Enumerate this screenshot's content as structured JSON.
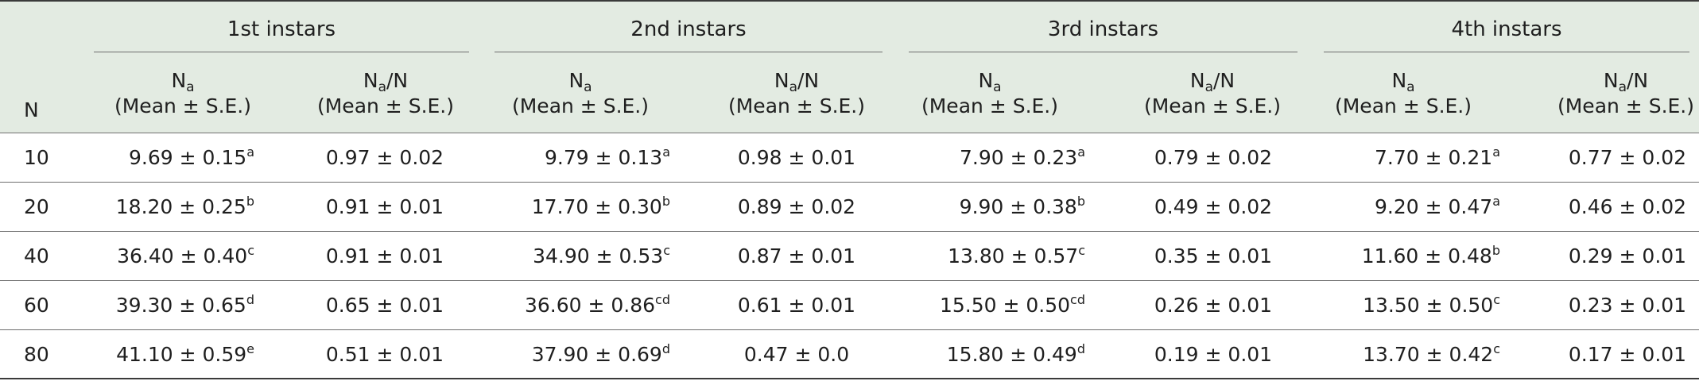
{
  "columns": {
    "n_header": "N",
    "groups": [
      "1st instars",
      "2nd instars",
      "3rd instars",
      "4th instars"
    ],
    "sub": {
      "mean_symbol": "N",
      "mean_subscript": "a",
      "ratio_symbol": "N",
      "ratio_subscript": "a",
      "ratio_suffix": "/N",
      "stat": "(Mean ± S.E.)"
    }
  },
  "rows": [
    {
      "n": "10",
      "cells": [
        {
          "value": "9.69 ± 0.15",
          "letter": "a"
        },
        {
          "value": "0.97 ± 0.02"
        },
        {
          "value": "9.79 ± 0.13",
          "letter": "a"
        },
        {
          "value": "0.98 ± 0.01"
        },
        {
          "value": "7.90 ± 0.23",
          "letter": "a"
        },
        {
          "value": "0.79 ± 0.02"
        },
        {
          "value": "7.70 ± 0.21",
          "letter": "a"
        },
        {
          "value": "0.77 ± 0.02"
        }
      ]
    },
    {
      "n": "20",
      "cells": [
        {
          "value": "18.20 ± 0.25",
          "letter": "b"
        },
        {
          "value": "0.91 ± 0.01"
        },
        {
          "value": "17.70 ± 0.30",
          "letter": "b"
        },
        {
          "value": "0.89 ± 0.02"
        },
        {
          "value": "9.90 ± 0.38",
          "letter": "b"
        },
        {
          "value": "0.49 ± 0.02"
        },
        {
          "value": "9.20 ± 0.47",
          "letter": "a"
        },
        {
          "value": "0.46 ± 0.02"
        }
      ]
    },
    {
      "n": "40",
      "cells": [
        {
          "value": "36.40 ± 0.40",
          "letter": "c"
        },
        {
          "value": "0.91 ± 0.01"
        },
        {
          "value": "34.90 ± 0.53",
          "letter": "c"
        },
        {
          "value": "0.87 ± 0.01"
        },
        {
          "value": "13.80 ± 0.57",
          "letter": "c"
        },
        {
          "value": "0.35 ± 0.01"
        },
        {
          "value": "11.60 ± 0.48",
          "letter": "b"
        },
        {
          "value": "0.29 ± 0.01"
        }
      ]
    },
    {
      "n": "60",
      "cells": [
        {
          "value": "39.30 ± 0.65",
          "letter": "d"
        },
        {
          "value": "0.65 ± 0.01"
        },
        {
          "value": "36.60 ± 0.86",
          "letter": "cd"
        },
        {
          "value": "0.61 ± 0.01"
        },
        {
          "value": "15.50 ± 0.50",
          "letter": "cd"
        },
        {
          "value": "0.26 ± 0.01"
        },
        {
          "value": "13.50 ± 0.50",
          "letter": "c"
        },
        {
          "value": "0.23 ± 0.01"
        }
      ]
    },
    {
      "n": "80",
      "cells": [
        {
          "value": "41.10 ± 0.59",
          "letter": "e"
        },
        {
          "value": "0.51 ± 0.01"
        },
        {
          "value": "37.90 ± 0.69",
          "letter": "d"
        },
        {
          "value": "0.47 ± 0.0"
        },
        {
          "value": "15.80 ± 0.49",
          "letter": "d"
        },
        {
          "value": "0.19 ± 0.01"
        },
        {
          "value": "13.70 ± 0.42",
          "letter": "c"
        },
        {
          "value": "0.17 ± 0.01"
        }
      ]
    }
  ],
  "colors": {
    "header_bg": "#e3ebe2",
    "rule": "#6e6e6e",
    "text": "#1f1f1f"
  }
}
